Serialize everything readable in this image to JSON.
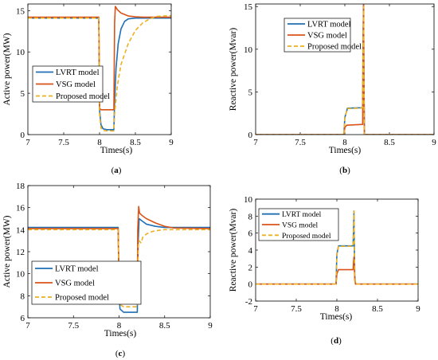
{
  "colors": {
    "lvrt": "#1f6fb4",
    "vsg": "#d95319",
    "proposed": "#edb120"
  },
  "chart_data": [
    {
      "type": "line",
      "panel": "a",
      "panel_label": "(a)",
      "xlabel": "Times(s)",
      "ylabel": "Active power(MW)",
      "xlim": [
        7,
        9
      ],
      "ylim": [
        0,
        15.8
      ],
      "xticks": [
        "7",
        "7.5",
        "8",
        "8.5",
        "9"
      ],
      "yticks": [
        "0",
        "5",
        "10",
        "15"
      ],
      "legend_position": "lower-left",
      "series": [
        {
          "name": "LVRT model",
          "x": [
            7,
            7.99,
            8.0,
            8.02,
            8.05,
            8.1,
            8.2,
            8.21,
            8.23,
            8.26,
            8.3,
            8.35,
            8.4,
            8.5,
            9
          ],
          "y": [
            14.1,
            14.1,
            3.0,
            1.2,
            0.7,
            0.6,
            0.6,
            4.0,
            8.0,
            11.0,
            12.8,
            13.7,
            14.0,
            14.1,
            14.1
          ]
        },
        {
          "name": "VSG model",
          "x": [
            7,
            7.99,
            8.0,
            8.02,
            8.2,
            8.21,
            8.22,
            8.25,
            8.3,
            8.4,
            8.5,
            8.6,
            9
          ],
          "y": [
            14.2,
            14.2,
            3.2,
            3.0,
            3.0,
            13.5,
            15.5,
            15.1,
            14.7,
            14.35,
            14.25,
            14.2,
            14.2
          ]
        },
        {
          "name": "Proposed model",
          "x": [
            7,
            7.99,
            8.0,
            8.02,
            8.05,
            8.1,
            8.2,
            8.21,
            8.25,
            8.3,
            8.4,
            8.5,
            8.6,
            8.7,
            8.8,
            9
          ],
          "y": [
            14.1,
            14.1,
            2.5,
            0.8,
            0.5,
            0.45,
            0.45,
            2.5,
            6.0,
            8.5,
            11.0,
            12.6,
            13.5,
            14.0,
            14.3,
            14.4
          ]
        }
      ]
    },
    {
      "type": "line",
      "panel": "b",
      "panel_label": "(b)",
      "xlabel": "Times(s)",
      "ylabel": "Reactive power(Mvar)",
      "xlim": [
        7,
        9
      ],
      "ylim": [
        0,
        15.3
      ],
      "xticks": [
        "7",
        "7.5",
        "8",
        "8.5",
        "9"
      ],
      "yticks": [
        "0",
        "5",
        "10",
        "15"
      ],
      "legend_position": "top-right",
      "series": [
        {
          "name": "LVRT model",
          "x": [
            7,
            7.99,
            8.0,
            8.03,
            8.19,
            8.2,
            8.205,
            8.21,
            8.215,
            8.22,
            9
          ],
          "y": [
            0,
            0,
            2.0,
            3.1,
            3.15,
            3.2,
            12.0,
            15.2,
            6.0,
            0,
            0
          ]
        },
        {
          "name": "VSG model",
          "x": [
            7,
            7.99,
            8.0,
            8.02,
            8.2,
            8.205,
            8.21,
            8.215,
            8.22,
            9
          ],
          "y": [
            0,
            0,
            0.8,
            1.1,
            1.2,
            9.0,
            15.2,
            5.0,
            0,
            0
          ]
        },
        {
          "name": "Proposed model",
          "x": [
            7,
            7.99,
            8.0,
            8.03,
            8.19,
            8.2,
            8.205,
            8.21,
            8.215,
            8.22,
            9
          ],
          "y": [
            0,
            0,
            2.0,
            3.05,
            3.1,
            3.15,
            11.5,
            15.0,
            6.0,
            0,
            0
          ]
        }
      ]
    },
    {
      "type": "line",
      "panel": "c",
      "panel_label": "(c)",
      "xlabel": "Times(s)",
      "ylabel": "Active power(MW)",
      "xlim": [
        7,
        9
      ],
      "ylim": [
        6,
        18
      ],
      "xticks": [
        "7",
        "7.5",
        "8",
        "8.5",
        "9"
      ],
      "yticks": [
        "6",
        "8",
        "10",
        "12",
        "14",
        "16",
        "18"
      ],
      "legend_position": "lower-left",
      "series": [
        {
          "name": "LVRT model",
          "x": [
            7,
            7.99,
            8.0,
            8.01,
            8.05,
            8.2,
            8.21,
            8.22,
            8.25,
            8.3,
            8.4,
            8.5,
            9
          ],
          "y": [
            14.2,
            14.2,
            8.5,
            6.8,
            6.5,
            6.5,
            13.0,
            15.0,
            14.8,
            14.5,
            14.3,
            14.2,
            14.2
          ]
        },
        {
          "name": "VSG model",
          "x": [
            7,
            7.99,
            8.0,
            8.01,
            8.2,
            8.205,
            8.215,
            8.225,
            8.25,
            8.3,
            8.4,
            8.5,
            8.6,
            9
          ],
          "y": [
            14.1,
            14.1,
            8.6,
            8.0,
            8.0,
            14.0,
            16.1,
            15.5,
            15.3,
            15.0,
            14.6,
            14.3,
            14.15,
            14.1
          ]
        },
        {
          "name": "Proposed model",
          "x": [
            7,
            7.99,
            8.0,
            8.01,
            8.05,
            8.2,
            8.21,
            8.22,
            8.24,
            8.26,
            8.3,
            8.35,
            8.4,
            8.5,
            8.6,
            9
          ],
          "y": [
            14.0,
            14.0,
            8.3,
            7.2,
            7.0,
            7.0,
            12.5,
            13.0,
            12.8,
            13.3,
            13.6,
            13.8,
            13.9,
            14.0,
            14.0,
            14.0
          ]
        }
      ]
    },
    {
      "type": "line",
      "panel": "d",
      "panel_label": "(d)",
      "xlabel": "Times(s)",
      "ylabel": "Reactive power(Mvar)",
      "xlim": [
        7,
        9
      ],
      "ylim": [
        -2,
        10
      ],
      "xticks": [
        "7",
        "7.5",
        "8",
        "8.5",
        "9"
      ],
      "yticks": [
        "-2",
        "0",
        "2",
        "4",
        "6",
        "8",
        "10"
      ],
      "legend_position": "top-right",
      "series": [
        {
          "name": "LVRT model",
          "x": [
            7,
            7.99,
            8.0,
            8.02,
            8.2,
            8.205,
            8.21,
            8.215,
            8.22,
            8.23,
            9
          ],
          "y": [
            0,
            0,
            3.5,
            4.5,
            4.5,
            6.5,
            8.6,
            4.5,
            1.0,
            0,
            0
          ]
        },
        {
          "name": "VSG model",
          "x": [
            7,
            7.99,
            8.0,
            8.02,
            8.2,
            8.205,
            8.21,
            8.215,
            8.22,
            8.23,
            9
          ],
          "y": [
            0,
            0,
            1.2,
            1.7,
            1.7,
            2.6,
            3.2,
            2.0,
            0.5,
            0,
            0
          ]
        },
        {
          "name": "Proposed model",
          "x": [
            7,
            7.99,
            8.0,
            8.02,
            8.2,
            8.205,
            8.21,
            8.215,
            8.22,
            8.23,
            9
          ],
          "y": [
            0,
            0,
            3.4,
            4.45,
            4.45,
            6.0,
            8.6,
            4.4,
            1.0,
            0,
            0
          ]
        }
      ]
    }
  ]
}
